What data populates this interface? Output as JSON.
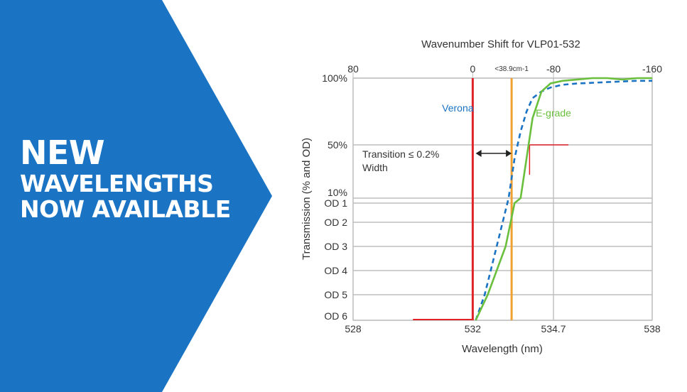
{
  "banner": {
    "line1": "NEW",
    "line2": "WAVELENGTHS",
    "line3": "NOW AVAILABLE",
    "color": "#1a73c3"
  },
  "chart_data": {
    "type": "line",
    "title": "Wavenumber Shift for VLP01-532",
    "xlabel": "Wavelength (nm)",
    "ylabel": "Transmission (% and OD)",
    "xlim": [
      528,
      538
    ],
    "x_ticks": [
      "528",
      "532",
      "534.7",
      "538"
    ],
    "top_ticks": [
      "80",
      "0",
      "-80",
      "-160"
    ],
    "top_annotation": "<38.9cm-1",
    "y_ticks": [
      "100%",
      "50%",
      "10%",
      "OD 1",
      "OD 2",
      "OD 3",
      "OD 4",
      "OD 5",
      "OD 6"
    ],
    "grid": true,
    "series": [
      {
        "name": "Verona",
        "color": "#1a73c3",
        "style": "dashed",
        "x": [
          532.1,
          532.4,
          532.6,
          532.8,
          533.0,
          533.2,
          533.4,
          533.6,
          533.8,
          534.0,
          534.3,
          534.6,
          535.0,
          535.5,
          536.0,
          536.5,
          537.0,
          537.5,
          538.0
        ],
        "y": [
          "OD 6",
          "OD 5",
          "OD 4",
          "OD 3",
          "OD 2",
          "10%",
          "40%",
          "60%",
          "75%",
          "85%",
          "90%",
          "93%",
          "95%",
          "96%",
          "96.5%",
          "97%",
          "97.5%",
          "98%",
          "98%"
        ]
      },
      {
        "name": "E-grade",
        "color": "#6abf3c",
        "style": "solid",
        "x": [
          532.1,
          532.5,
          532.8,
          533.1,
          533.4,
          533.6,
          533.8,
          534.0,
          534.3,
          534.6,
          535.0,
          535.5,
          536.0,
          536.5,
          537.0,
          537.5,
          538.0
        ],
        "y": [
          "OD 6",
          "OD 5",
          "OD 4",
          "OD 3",
          "OD 1",
          "10%",
          "40%",
          "70%",
          "90%",
          "96%",
          "98%",
          "99%",
          "100%",
          "100%",
          "99%",
          "100%",
          "100%"
        ]
      }
    ],
    "edge_marks": [
      {
        "x": 532.0,
        "color": "#e0242a"
      },
      {
        "x": 533.3,
        "color": "#f0a030"
      }
    ],
    "annotations": [
      {
        "text": "Transition ≤ 0.2%"
      },
      {
        "text": "Width"
      }
    ]
  }
}
